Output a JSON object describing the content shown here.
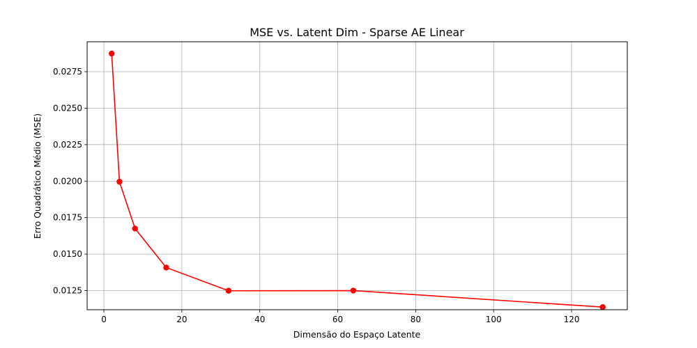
{
  "chart_data": {
    "type": "line",
    "title": "MSE vs. Latent Dim - Sparse AE Linear",
    "xlabel": "Dimensão do Espaço Latente",
    "ylabel": "Erro Quadrático Médio (MSE)",
    "xlim": [
      -4.3,
      134.3
    ],
    "ylim": [
      0.01119,
      0.02955
    ],
    "x_ticks": [
      0,
      20,
      40,
      60,
      80,
      100,
      120
    ],
    "y_ticks": [
      0.0125,
      0.015,
      0.0175,
      0.02,
      0.0225,
      0.025,
      0.0275
    ],
    "y_tick_labels": [
      "0.0125",
      "0.0150",
      "0.0175",
      "0.0200",
      "0.0225",
      "0.0250",
      "0.0275"
    ],
    "grid": true,
    "series": [
      {
        "color": "#ff0000",
        "marker": "circle",
        "x": [
          2,
          4,
          8,
          16,
          32,
          64,
          128
        ],
        "y": [
          0.02874,
          0.01996,
          0.01675,
          0.01408,
          0.01249,
          0.0125,
          0.01137
        ]
      }
    ]
  }
}
